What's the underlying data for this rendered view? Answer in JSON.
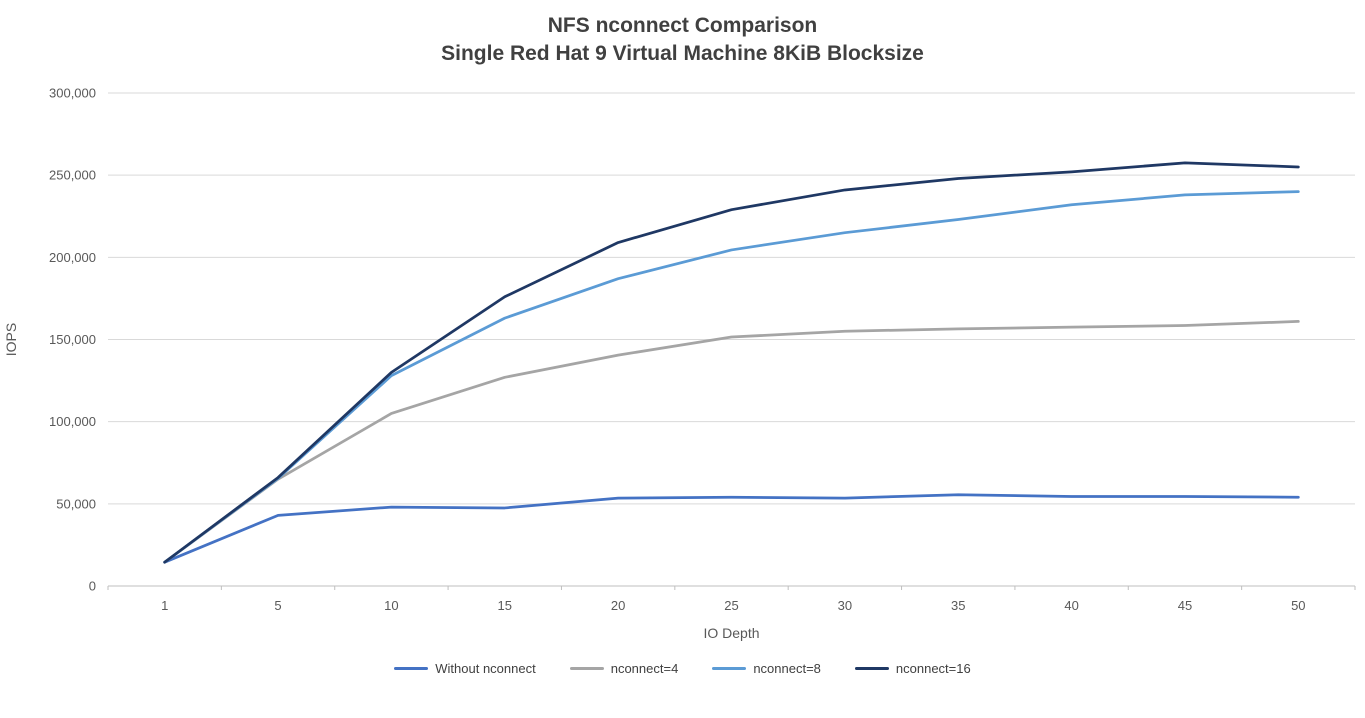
{
  "chart_data": {
    "type": "line",
    "title": "NFS nconnect Comparison",
    "subtitle": "Single Red Hat 9 Virtual Machine 8KiB Blocksize",
    "xlabel": "IO Depth",
    "ylabel": "IOPS",
    "categories": [
      1,
      5,
      10,
      15,
      20,
      25,
      30,
      35,
      40,
      45,
      50
    ],
    "ylim": [
      0,
      300000
    ],
    "ytick_step": 50000,
    "y_tick_labels": [
      "0",
      "50,000",
      "100,000",
      "150,000",
      "200,000",
      "250,000",
      "300,000"
    ],
    "grid": "horizontal",
    "legend_position": "bottom",
    "series": [
      {
        "name": "Without nconnect",
        "color": "#4472C4",
        "values": [
          14500,
          43000,
          48000,
          47500,
          53500,
          54000,
          53500,
          55500,
          54500,
          54500,
          54000
        ]
      },
      {
        "name": "nconnect=4",
        "color": "#A5A5A5",
        "values": [
          14500,
          65000,
          105000,
          127000,
          140500,
          151500,
          155000,
          156500,
          157500,
          158500,
          161000
        ]
      },
      {
        "name": "nconnect=8",
        "color": "#5B9BD5",
        "values": [
          14500,
          65500,
          128000,
          163000,
          187000,
          204500,
          215000,
          223000,
          232000,
          238000,
          240000
        ]
      },
      {
        "name": "nconnect=16",
        "color": "#1F3864",
        "values": [
          14500,
          66000,
          130000,
          176000,
          209000,
          229000,
          241000,
          248000,
          252000,
          257500,
          255000
        ]
      }
    ],
    "colors": {
      "grid": "#D9D9D9",
      "axis": "#BFBFBF",
      "tick_text": "#595959",
      "title_text": "#404040",
      "background": "#FFFFFF"
    }
  }
}
